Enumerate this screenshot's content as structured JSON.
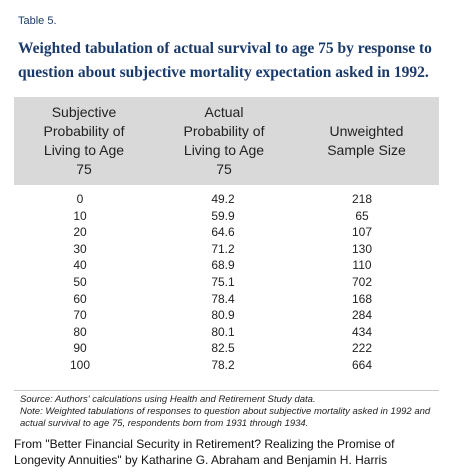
{
  "table_label": "Table 5.",
  "title": "Weighted tabulation of actual survival to age 75 by response to question about subjective mortality expectation asked in 1992.",
  "table": {
    "headers": [
      [
        "Subjective",
        "Probability of",
        "Living to Age",
        "75"
      ],
      [
        "Actual",
        "Probability of",
        "Living to Age",
        "75"
      ],
      [
        "Unweighted",
        "Sample Size"
      ]
    ],
    "rows": [
      [
        "0",
        "49.2",
        "218"
      ],
      [
        "10",
        "59.9",
        "65"
      ],
      [
        "20",
        "64.6",
        "107"
      ],
      [
        "30",
        "71.2",
        "130"
      ],
      [
        "40",
        "68.9",
        "110"
      ],
      [
        "50",
        "75.1",
        "702"
      ],
      [
        "60",
        "78.4",
        "168"
      ],
      [
        "70",
        "80.9",
        "284"
      ],
      [
        "80",
        "80.1",
        "434"
      ],
      [
        "90",
        "82.5",
        "222"
      ],
      [
        "100",
        "78.2",
        "664"
      ]
    ]
  },
  "source": "Source:  Authors' calculations using Health and Retirement Study data.",
  "note": "Note:  Weighted tabulations of responses to question about subjective mortality asked in 1992 and actual survival to age 75, respondents born from 1931 through 1934.",
  "attribution": "From \"Better Financial Security in Retirement? Realizing the Promise of Longevity Annuities\" by Katharine G. Abraham and Benjamin H. Harris",
  "colors": {
    "title": "#1a3a6b",
    "header_bg": "#d9d9d9"
  }
}
